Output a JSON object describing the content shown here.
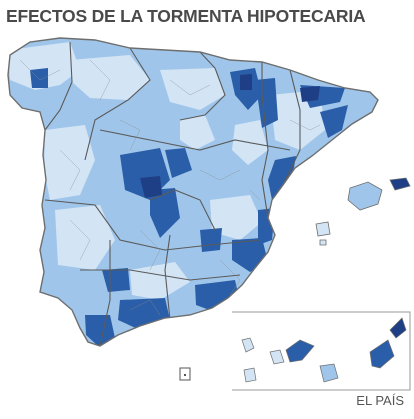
{
  "title": "EFECTOS DE LA TORMENTA HIPOTECARIA",
  "credit": "EL PAÍS",
  "colors": {
    "light": "#d3e4f5",
    "medium": "#9fc6ea",
    "dark": "#2b5ea8",
    "darker": "#1e3f85",
    "border": "#8a8a8a",
    "province_border": "#5a5a5a",
    "outline": "#6e6e6e",
    "inset_frame": "#9a9a9a"
  }
}
